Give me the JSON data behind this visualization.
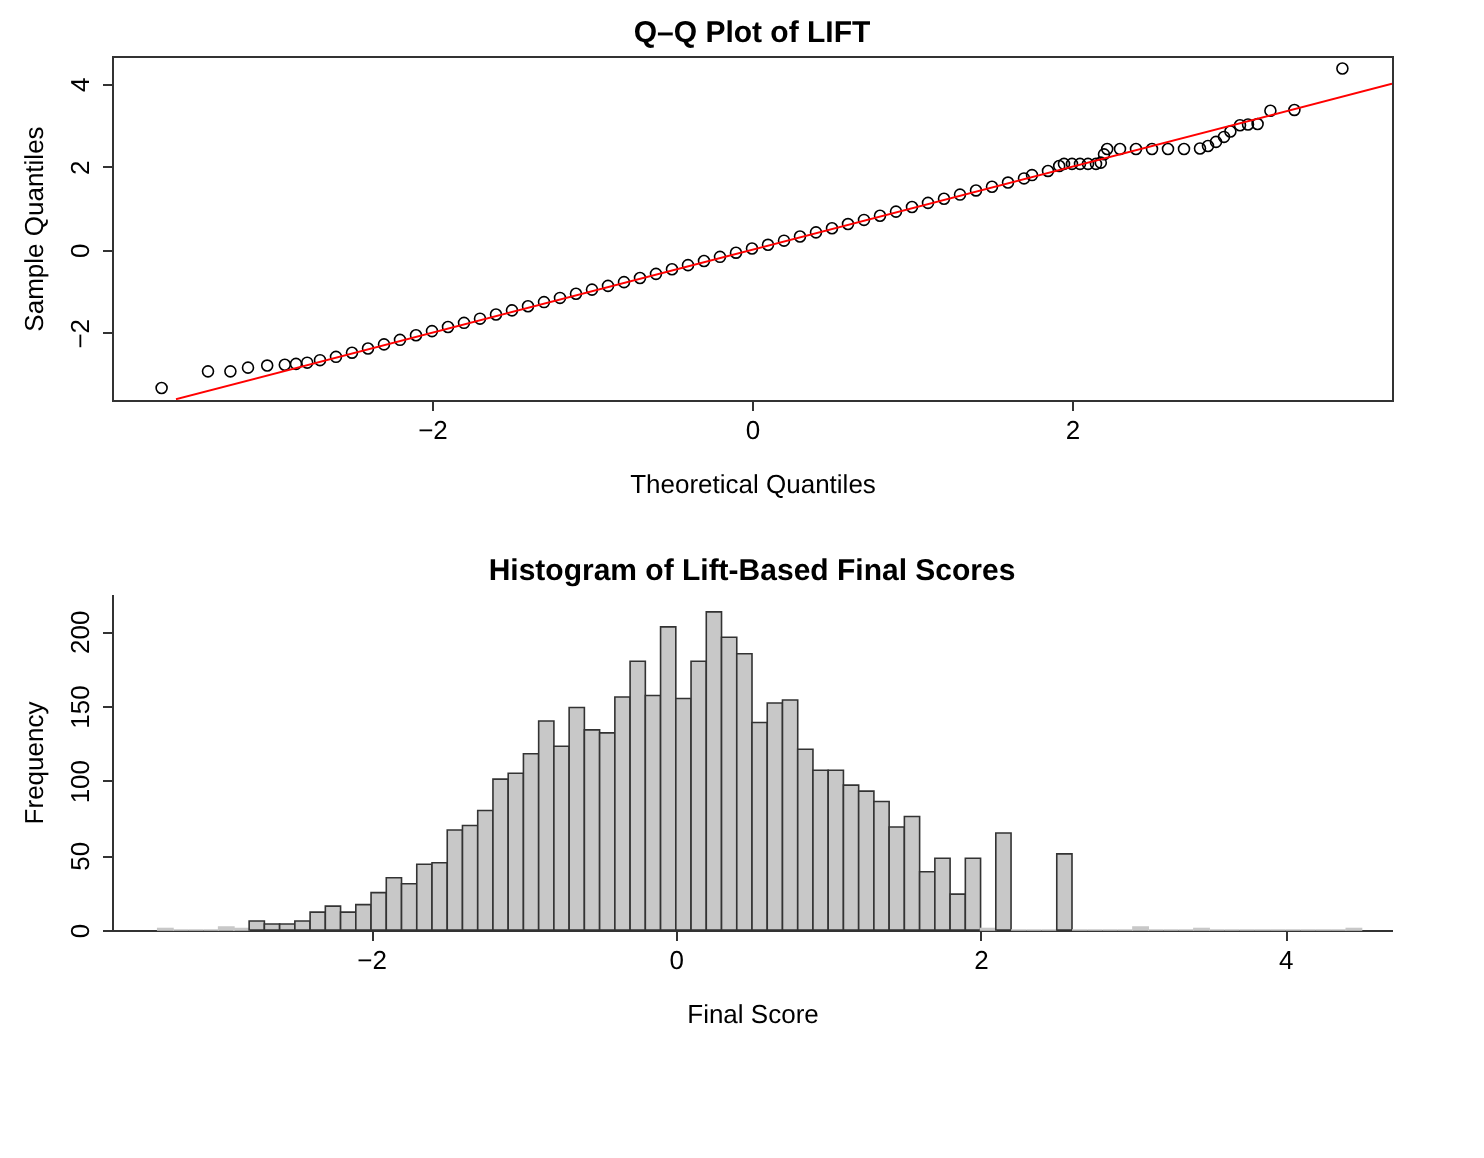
{
  "chart_data": [
    {
      "type": "scatter",
      "title": "Q–Q Plot of LIFT",
      "xlabel": "Theoretical Quantiles",
      "ylabel": "Sample Quantiles",
      "xlim": [
        -4,
        4
      ],
      "ylim": [
        -3.62,
        4.67
      ],
      "xticks": [
        -2,
        0,
        2
      ],
      "yticks": [
        -2,
        0,
        2,
        4
      ],
      "grid": false,
      "series": [
        {
          "type": "scatter",
          "color": "#000000",
          "marker": "circle",
          "x": [
            -3.69,
            -3.4,
            -3.26,
            -3.15,
            -3.03,
            -2.92,
            -2.85,
            -2.78,
            -2.7,
            -2.6,
            -2.5,
            -2.4,
            -2.3,
            -2.2,
            -2.1,
            -2.0,
            -1.9,
            -1.8,
            -1.7,
            -1.6,
            -1.5,
            -1.4,
            -1.3,
            -1.2,
            -1.1,
            -1.0,
            -0.9,
            -0.8,
            -0.7,
            -0.6,
            -0.5,
            -0.4,
            -0.3,
            -0.2,
            -0.1,
            0,
            0.1,
            0.2,
            0.3,
            0.4,
            0.5,
            0.6,
            0.7,
            0.8,
            0.9,
            1.0,
            1.1,
            1.2,
            1.3,
            1.4,
            1.5,
            1.6,
            1.7,
            1.75,
            1.85,
            1.92,
            1.95,
            2.0,
            2.05,
            2.1,
            2.15,
            2.18,
            2.2,
            2.22,
            2.3,
            2.4,
            2.5,
            2.6,
            2.7,
            2.8,
            2.85,
            2.9,
            2.95,
            2.99,
            3.05,
            3.1,
            3.16,
            3.24,
            3.39,
            3.69
          ],
          "values": [
            -3.33,
            -2.93,
            -2.93,
            -2.84,
            -2.79,
            -2.77,
            -2.75,
            -2.72,
            -2.66,
            -2.58,
            -2.48,
            -2.38,
            -2.28,
            -2.17,
            -2.06,
            -1.96,
            -1.86,
            -1.76,
            -1.66,
            -1.56,
            -1.46,
            -1.36,
            -1.26,
            -1.16,
            -1.06,
            -0.96,
            -0.87,
            -0.78,
            -0.68,
            -0.58,
            -0.47,
            -0.37,
            -0.27,
            -0.17,
            -0.07,
            0.03,
            0.12,
            0.22,
            0.32,
            0.42,
            0.52,
            0.62,
            0.72,
            0.82,
            0.92,
            1.03,
            1.13,
            1.23,
            1.33,
            1.43,
            1.52,
            1.62,
            1.72,
            1.8,
            1.9,
            2.02,
            2.07,
            2.07,
            2.07,
            2.07,
            2.07,
            2.1,
            2.3,
            2.43,
            2.43,
            2.43,
            2.43,
            2.43,
            2.43,
            2.44,
            2.5,
            2.6,
            2.72,
            2.85,
            3.0,
            3.02,
            3.03,
            3.35,
            3.37,
            4.37
          ]
        },
        {
          "type": "line",
          "color": "#ff0000",
          "x": [
            -3.6,
            4
          ],
          "values": [
            -3.6,
            4.0
          ]
        }
      ]
    },
    {
      "type": "histogram",
      "title": "Histogram of Lift-Based Final Scores",
      "xlabel": "Final Score",
      "ylabel": "Frequency",
      "xlim": [
        -3.7,
        4.7
      ],
      "ylim": [
        0,
        225
      ],
      "xticks": [
        -2,
        0,
        2,
        4
      ],
      "yticks": [
        0,
        50,
        100,
        150,
        200
      ],
      "grid": false,
      "color": "#c8c8c8",
      "bins": [
        -3.4,
        -3.3,
        -3.2,
        -3.1,
        -3.0,
        -2.9,
        -2.8,
        -2.7,
        -2.6,
        -2.5,
        -2.4,
        -2.3,
        -2.2,
        -2.1,
        -2.0,
        -1.9,
        -1.8,
        -1.7,
        -1.6,
        -1.5,
        -1.4,
        -1.3,
        -1.2,
        -1.1,
        -1.0,
        -0.9,
        -0.8,
        -0.7,
        -0.6,
        -0.5,
        -0.4,
        -0.3,
        -0.2,
        -0.1,
        0.0,
        0.1,
        0.2,
        0.3,
        0.4,
        0.5,
        0.6,
        0.7,
        0.8,
        0.9,
        1.0,
        1.1,
        1.2,
        1.3,
        1.4,
        1.5,
        1.6,
        1.7,
        1.8,
        1.9,
        2.0,
        2.1,
        2.2,
        2.3,
        2.4,
        2.5,
        2.6,
        2.7,
        2.8,
        2.9,
        3.0,
        3.1,
        3.2,
        3.3,
        3.4,
        3.5,
        3.6,
        3.7,
        3.8,
        3.9,
        4.0,
        4.1,
        4.2,
        4.3,
        4.4,
        4.5
      ],
      "values": [
        1,
        0,
        0,
        0,
        2,
        1,
        6,
        4,
        4,
        6,
        12,
        16,
        12,
        17,
        25,
        35,
        31,
        44,
        45,
        67,
        70,
        80,
        101,
        105,
        118,
        140,
        123,
        149,
        134,
        132,
        156,
        180,
        157,
        203,
        155,
        180,
        213,
        196,
        185,
        139,
        152,
        154,
        121,
        107,
        107,
        97,
        93,
        86,
        69,
        76,
        39,
        48,
        24,
        48,
        1,
        65,
        0,
        0,
        0,
        51,
        0,
        0,
        0,
        0,
        2,
        0,
        0,
        0,
        1,
        0,
        0,
        0,
        0,
        0,
        0,
        0,
        0,
        0,
        1
      ]
    }
  ]
}
